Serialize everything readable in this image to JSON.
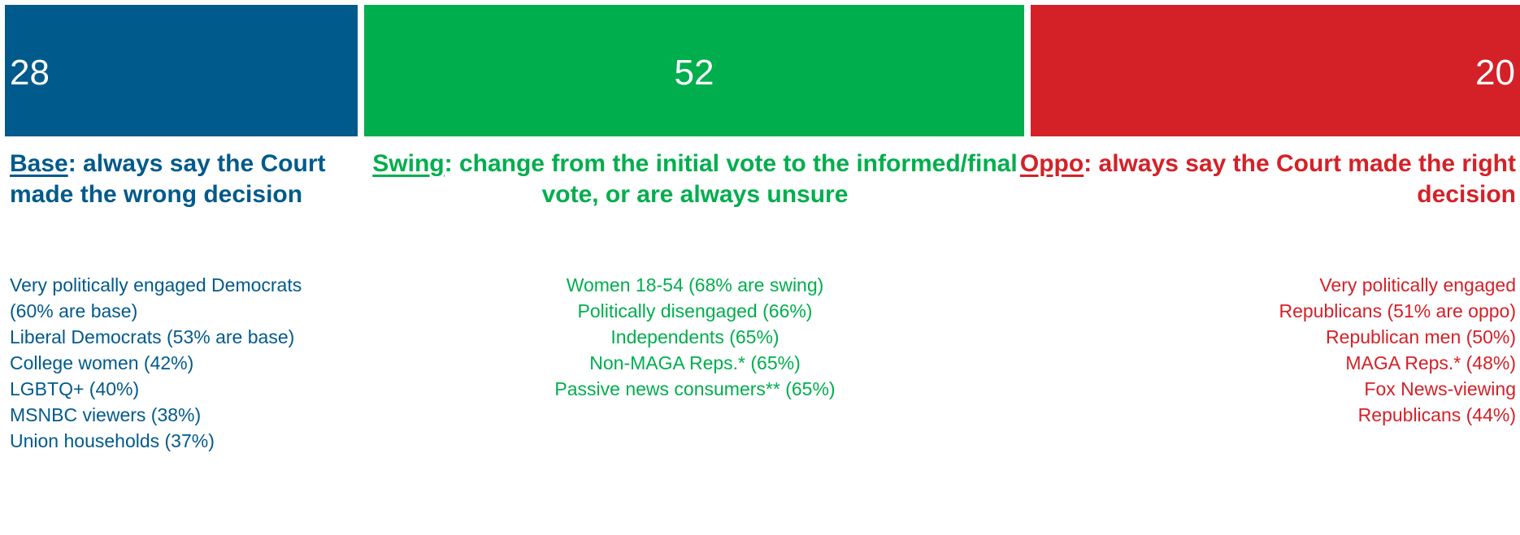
{
  "chart_data": {
    "type": "bar",
    "orientation": "horizontal-stacked",
    "categories": [
      "Base",
      "Swing",
      "Oppo"
    ],
    "values": [
      28,
      52,
      20
    ],
    "colors": [
      "#005a8b",
      "#00ae4d",
      "#d42128"
    ]
  },
  "segments": [
    {
      "key": "Base",
      "value_label": "28",
      "heading_key": "Base",
      "heading_rest": ": always say the Court made the wrong decision",
      "color": "#005a8b",
      "text_color": "#005a8b",
      "groups": [
        "Very politically engaged Democrats",
        "(60% are base)",
        "Liberal Democrats (53% are base)",
        "College women (42%)",
        "LGBTQ+ (40%)",
        "MSNBC viewers (38%)",
        "Union households (37%)"
      ]
    },
    {
      "key": "Swing",
      "value_label": "52",
      "heading_key": "Swing",
      "heading_rest": ": change from the initial vote to the informed/final vote, or are always unsure",
      "color": "#00ae4d",
      "text_color": "#00ae4d",
      "groups": [
        "Women 18-54 (68% are swing)",
        "Politically disengaged (66%)",
        "Independents (65%)",
        "Non-MAGA Reps.* (65%)",
        "Passive news consumers** (65%)"
      ]
    },
    {
      "key": "Oppo",
      "value_label": "20",
      "heading_key": "Oppo",
      "heading_rest": ": always say the Court made the right decision",
      "color": "#d42128",
      "text_color": "#d42128",
      "groups": [
        "Very politically engaged",
        "Republicans (51% are oppo)",
        "Republican men (50%)",
        "MAGA Reps.* (48%)",
        "Fox News-viewing",
        "Republicans (44%)"
      ]
    }
  ]
}
